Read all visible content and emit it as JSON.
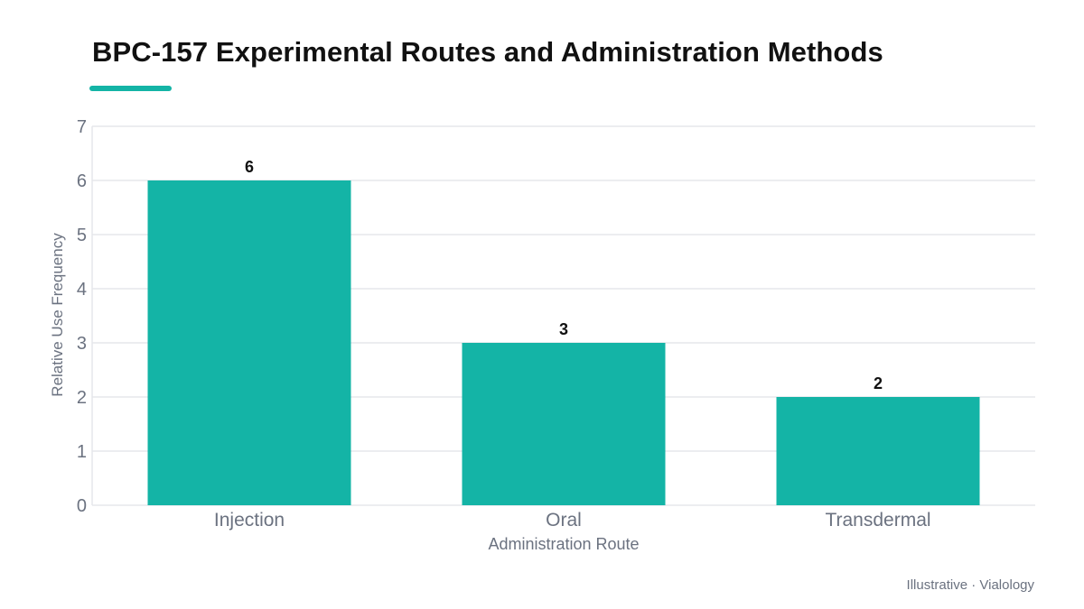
{
  "title": "BPC-157 Experimental Routes and Administration Methods",
  "footer": "Illustrative · Vialology",
  "colors": {
    "accent": "#14b4a6",
    "bar": "#14b4a6",
    "grid": "#e5e7eb",
    "tick_text": "#6b7280",
    "value_text": "#111111"
  },
  "chart_data": {
    "type": "bar",
    "categories": [
      "Injection",
      "Oral",
      "Transdermal"
    ],
    "values": [
      6,
      3,
      2
    ],
    "data_labels": [
      "6",
      "3",
      "2"
    ],
    "title": "BPC-157 Experimental Routes and Administration Methods",
    "xlabel": "Administration Route",
    "ylabel": "Relative Use Frequency",
    "ylim": [
      0,
      7
    ],
    "yticks": [
      "0",
      "1",
      "2",
      "3",
      "4",
      "5",
      "6",
      "7"
    ],
    "grid": true,
    "legend": "none"
  }
}
